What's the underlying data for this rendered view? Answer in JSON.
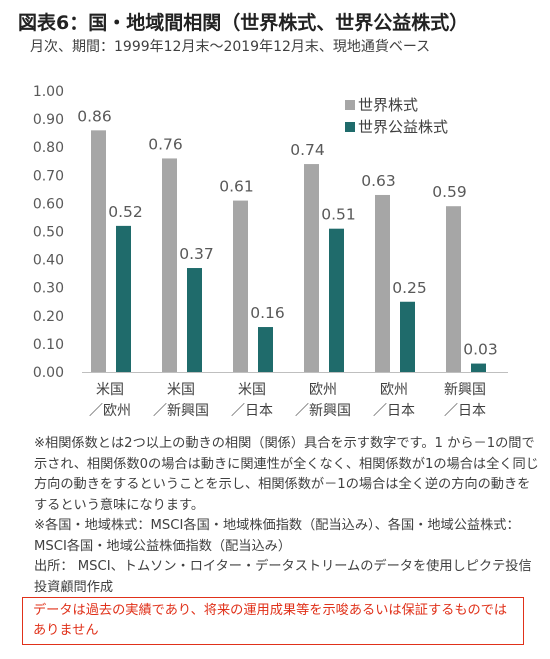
{
  "title": "図表6：国・地域間相関（世界株式、世界公益株式）",
  "subtitle": "月次、期間：1999年12月末～2019年12月末、現地通貨ベース",
  "chart_data": {
    "type": "bar",
    "categories": [
      [
        "米国",
        "／欧州"
      ],
      [
        "米国",
        "／新興国"
      ],
      [
        "米国",
        "／日本"
      ],
      [
        "欧州",
        "／新興国"
      ],
      [
        "欧州",
        "／日本"
      ],
      [
        "新興国",
        "／日本"
      ]
    ],
    "series": [
      {
        "name": "世界株式",
        "color": "#a6a6a6",
        "values": [
          0.86,
          0.76,
          0.61,
          0.74,
          0.63,
          0.59
        ],
        "labels": [
          "0.86",
          "0.76",
          "0.61",
          "0.74",
          "0.63",
          "0.59"
        ]
      },
      {
        "name": "世界公益株式",
        "color": "#1f6b6b",
        "values": [
          0.52,
          0.37,
          0.16,
          0.51,
          0.25,
          0.03
        ],
        "labels": [
          "0.52",
          "0.37",
          "0.16",
          "0.51",
          "0.25",
          "0.03"
        ]
      }
    ],
    "y_ticks": [
      "0.00",
      "0.10",
      "0.20",
      "0.30",
      "0.40",
      "0.50",
      "0.60",
      "0.70",
      "0.80",
      "0.90",
      "1.00"
    ],
    "ylim": [
      0,
      1.0
    ],
    "grid": false,
    "legend_position": "top-right"
  },
  "notes": [
    "※相関係数とは2つ以上の動きの相関（関係）具合を示す数字です。1 から－1の間で示され、相関係数0の場合は動きに関連性が全くなく、相関係数が1の場合は全く同じ方向の動きをするということを示し、相関係数が－1の場合は全く逆の方向の動きをするという意味になります。",
    "※各国・地域株式：MSCI各国・地域株価指数（配当込み）、各国・地域公益株式：MSCI各国・地域公益株価指数（配当込み）",
    "出所： MSCI、トムソン・ロイター・データストリームのデータを使用しピクテ投信投資顧問作成"
  ],
  "disclaimer": "データは過去の実績であり、将来の運用成果等を示唆あるいは保証するものではありません"
}
